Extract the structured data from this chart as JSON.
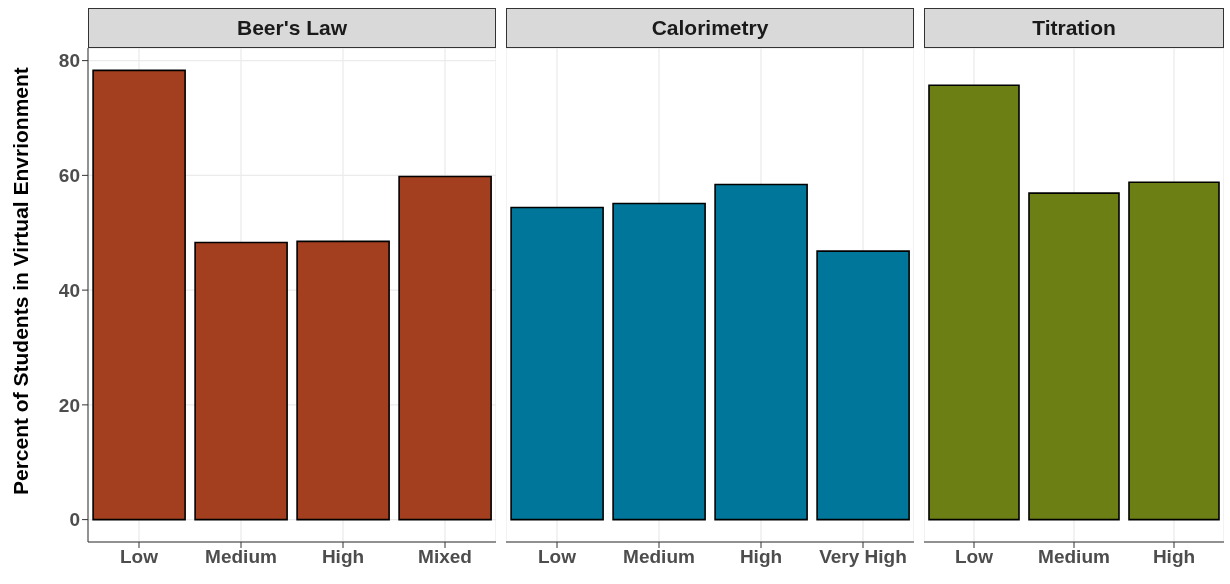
{
  "chart_data": [
    {
      "type": "bar",
      "title": "Beer's Law",
      "ylabel": "Percent of Students in Virtual Envrionment",
      "categories": [
        "Low",
        "Medium",
        "High",
        "Mixed"
      ],
      "values": [
        78.3,
        48.3,
        48.5,
        59.8
      ],
      "color": "#a33f1f",
      "ylim": [
        -3.9,
        82.2
      ],
      "yticks": [
        0,
        20,
        40,
        60,
        80
      ],
      "grid": true
    },
    {
      "type": "bar",
      "title": "Calorimetry",
      "categories": [
        "Low",
        "Medium",
        "High",
        "Very High"
      ],
      "values": [
        54.4,
        55.1,
        58.4,
        46.8
      ],
      "color": "#00779a",
      "ylim": [
        -3.9,
        82.2
      ],
      "yticks": [
        0,
        20,
        40,
        60,
        80
      ],
      "grid": true,
      "tick_labels": "x"
    },
    {
      "type": "bar",
      "title": "Titration",
      "categories": [
        "Low",
        "Medium",
        "High"
      ],
      "values": [
        75.7,
        56.9,
        58.8
      ],
      "color": "#6b7f15",
      "ylim": [
        -3.9,
        82.2
      ],
      "yticks": [
        0,
        20,
        40,
        60,
        80
      ],
      "grid": true,
      "tick_labels": "x"
    }
  ]
}
